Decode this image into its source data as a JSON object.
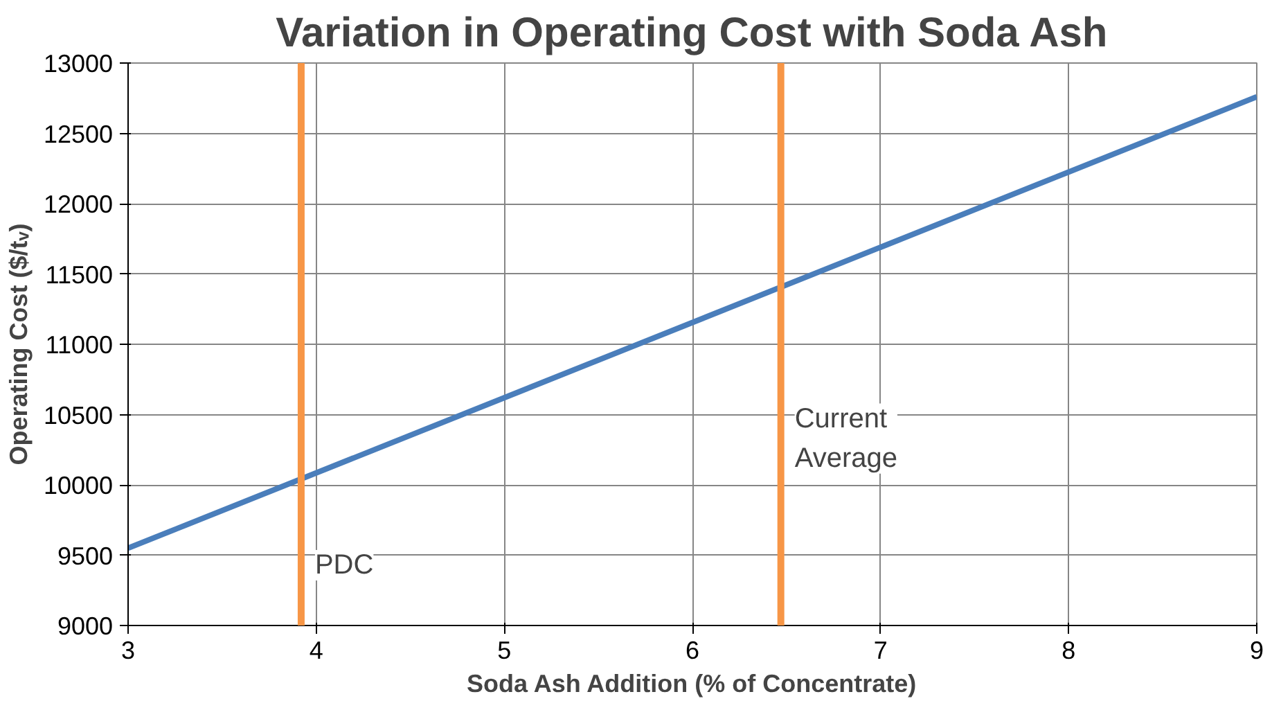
{
  "chart_data": {
    "type": "line",
    "title": "Variation in Operating Cost with Soda Ash",
    "xlabel": "Soda Ash Addition (% of Concentrate)",
    "ylabel": "Operating Cost ($/tᵥ)",
    "x": [
      3,
      9
    ],
    "series": [
      {
        "color": "#4a7ebb",
        "values": [
          9550,
          12760
        ]
      }
    ],
    "xlim": [
      3,
      9
    ],
    "xticks": [
      3,
      4,
      5,
      6,
      7,
      8,
      9
    ],
    "ylim": [
      9000,
      13000
    ],
    "yticks": [
      9000,
      9500,
      10000,
      10500,
      11000,
      11500,
      12000,
      12500,
      13000
    ],
    "ref_lines": [
      {
        "axis": "x",
        "value": 3.92,
        "label": "PDC",
        "color": "#f79646"
      },
      {
        "axis": "x",
        "value": 6.47,
        "label": "Current\nAverage",
        "color": "#f79646"
      }
    ],
    "grid": true,
    "marker": "none",
    "line_style": "solid"
  }
}
